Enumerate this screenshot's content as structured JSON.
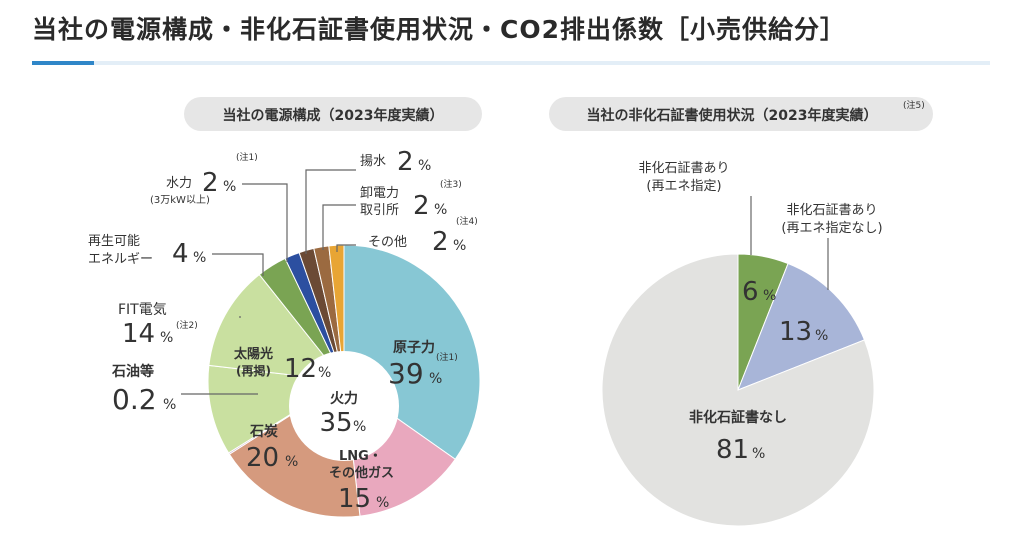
{
  "page": {
    "title": "当社の電源構成・非化石証書使用状況・CO2排出係数［小売供給分］"
  },
  "chart_data": [
    {
      "type": "pie",
      "title": "当社の電源構成（2023年度実績）",
      "center_label": "火力",
      "center_value": "35",
      "unit": "%",
      "slices": [
        {
          "label": "原子力",
          "value": 39,
          "note": "(注1)",
          "color": "#87c7d4"
        },
        {
          "label": "LNG・その他ガス",
          "value": 15,
          "color": "#e9a8be"
        },
        {
          "label": "石炭",
          "value": 20,
          "color": "#d59a7e"
        },
        {
          "label": "石油等",
          "value": 0.2,
          "color": "#b58fbd"
        },
        {
          "label": "太陽光(再掲)",
          "value": 12,
          "color": "#c9e0a0"
        },
        {
          "label": "FIT電気",
          "value": 14,
          "note": "(注2)",
          "color": "#c9e0a0"
        },
        {
          "label": "再生可能エネルギー",
          "value": 4,
          "color": "#7aa453"
        },
        {
          "label": "水力(3万kW以上)",
          "value": 2,
          "note": "(注1)",
          "color": "#2c4fa0"
        },
        {
          "label": "揚水",
          "value": 2,
          "color": "#6b4a35"
        },
        {
          "label": "卸電力取引所",
          "value": 2,
          "note": "(注3)",
          "color": "#9b6a40"
        },
        {
          "label": "その他",
          "value": 2,
          "note": "(注4)",
          "color": "#e8a534"
        }
      ],
      "label_texts": {
        "nuclear": "原子力",
        "nuclear_val": "39",
        "nuclear_note": "(注1)",
        "lng1": "LNG・",
        "lng2": "その他ガス",
        "lng_val": "15",
        "coal": "石炭",
        "coal_val": "20",
        "oil": "石油等",
        "oil_val": "0.2",
        "solar1": "太陽光",
        "solar2": "(再掲)",
        "solar_val": "12",
        "fit": "FIT電気",
        "fit_val": "14",
        "fit_note": "(注2)",
        "renew1": "再生可能",
        "renew2": "エネルギー",
        "renew_val": "4",
        "hydro": "水力",
        "hydro_sub": "(3万kW以上)",
        "hydro_val": "2",
        "hydro_note": "(注1)",
        "pump": "揚水",
        "pump_val": "2",
        "jepx1": "卸電力",
        "jepx2": "取引所",
        "jepx_val": "2",
        "jepx_note": "(注3)",
        "other": "その他",
        "other_val": "2",
        "other_note": "(注4)"
      }
    },
    {
      "type": "pie",
      "title": "当社の非化石証書使用状況（2023年度実績）",
      "title_note": "(注5)",
      "unit": "%",
      "slices": [
        {
          "label": "非化石証書あり(再エネ指定)",
          "value": 6,
          "color": "#7aa453"
        },
        {
          "label": "非化石証書あり(再エネ指定なし)",
          "value": 13,
          "color": "#a8b5d8"
        },
        {
          "label": "非化石証書なし",
          "value": 81,
          "color": "#e2e2e0"
        }
      ],
      "label_texts": {
        "re1": "非化石証書あり",
        "re2": "(再エネ指定)",
        "re_val": "6",
        "nre1": "非化石証書あり",
        "nre2": "(再エネ指定なし)",
        "nre_val": "13",
        "none": "非化石証書なし",
        "none_val": "81"
      }
    }
  ]
}
